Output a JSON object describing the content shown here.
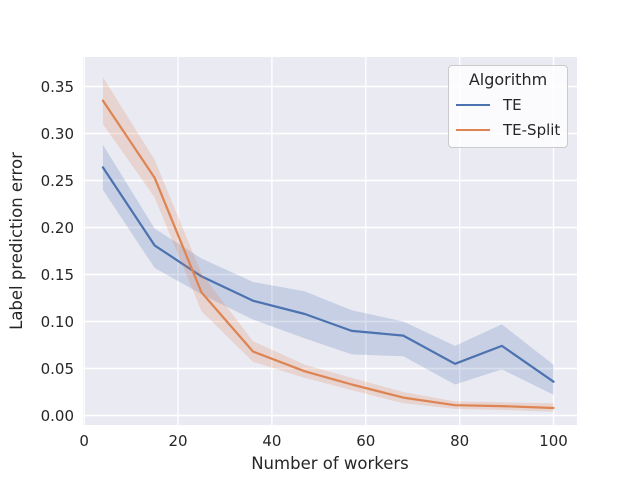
{
  "chart_data": {
    "type": "line",
    "title": "",
    "xlabel": "Number of workers",
    "ylabel": "Label prediction error",
    "x": [
      4,
      15,
      25,
      36,
      47,
      57,
      68,
      79,
      89,
      100
    ],
    "series": [
      {
        "name": "TE",
        "color": "#4c72b0",
        "values": [
          0.264,
          0.181,
          0.148,
          0.122,
          0.108,
          0.09,
          0.085,
          0.055,
          0.074,
          0.036
        ],
        "band_lower": [
          0.24,
          0.157,
          0.129,
          0.102,
          0.082,
          0.065,
          0.063,
          0.033,
          0.049,
          0.022
        ],
        "band_upper": [
          0.288,
          0.199,
          0.167,
          0.142,
          0.132,
          0.112,
          0.1,
          0.074,
          0.097,
          0.054
        ]
      },
      {
        "name": "TE-Split",
        "color": "#dd8452",
        "values": [
          0.335,
          0.253,
          0.131,
          0.068,
          0.047,
          0.033,
          0.019,
          0.011,
          0.01,
          0.008
        ],
        "band_lower": [
          0.31,
          0.232,
          0.111,
          0.057,
          0.04,
          0.027,
          0.013,
          0.007,
          0.006,
          0.004
        ],
        "band_upper": [
          0.36,
          0.272,
          0.151,
          0.079,
          0.054,
          0.04,
          0.025,
          0.015,
          0.014,
          0.013
        ]
      }
    ],
    "xticks": {
      "values": [
        0,
        20,
        40,
        60,
        80,
        100
      ],
      "labels": [
        "0",
        "20",
        "40",
        "60",
        "80",
        "100"
      ]
    },
    "yticks": {
      "values": [
        0.0,
        0.05,
        0.1,
        0.15,
        0.2,
        0.25,
        0.3,
        0.35
      ],
      "labels": [
        "0.00",
        "0.05",
        "0.10",
        "0.15",
        "0.20",
        "0.25",
        "0.30",
        "0.35"
      ]
    },
    "xlim": [
      -0.25,
      105.0
    ],
    "ylim": [
      -0.0101,
      0.3814
    ],
    "grid": true,
    "legend": {
      "title": "Algorithm",
      "position": "upper right"
    },
    "style": {
      "figure_background": "#ffffff",
      "axes_background": "#eaeaf2",
      "grid_color": "#ffffff",
      "text_color": "#262626",
      "band_alpha": 0.22
    }
  }
}
